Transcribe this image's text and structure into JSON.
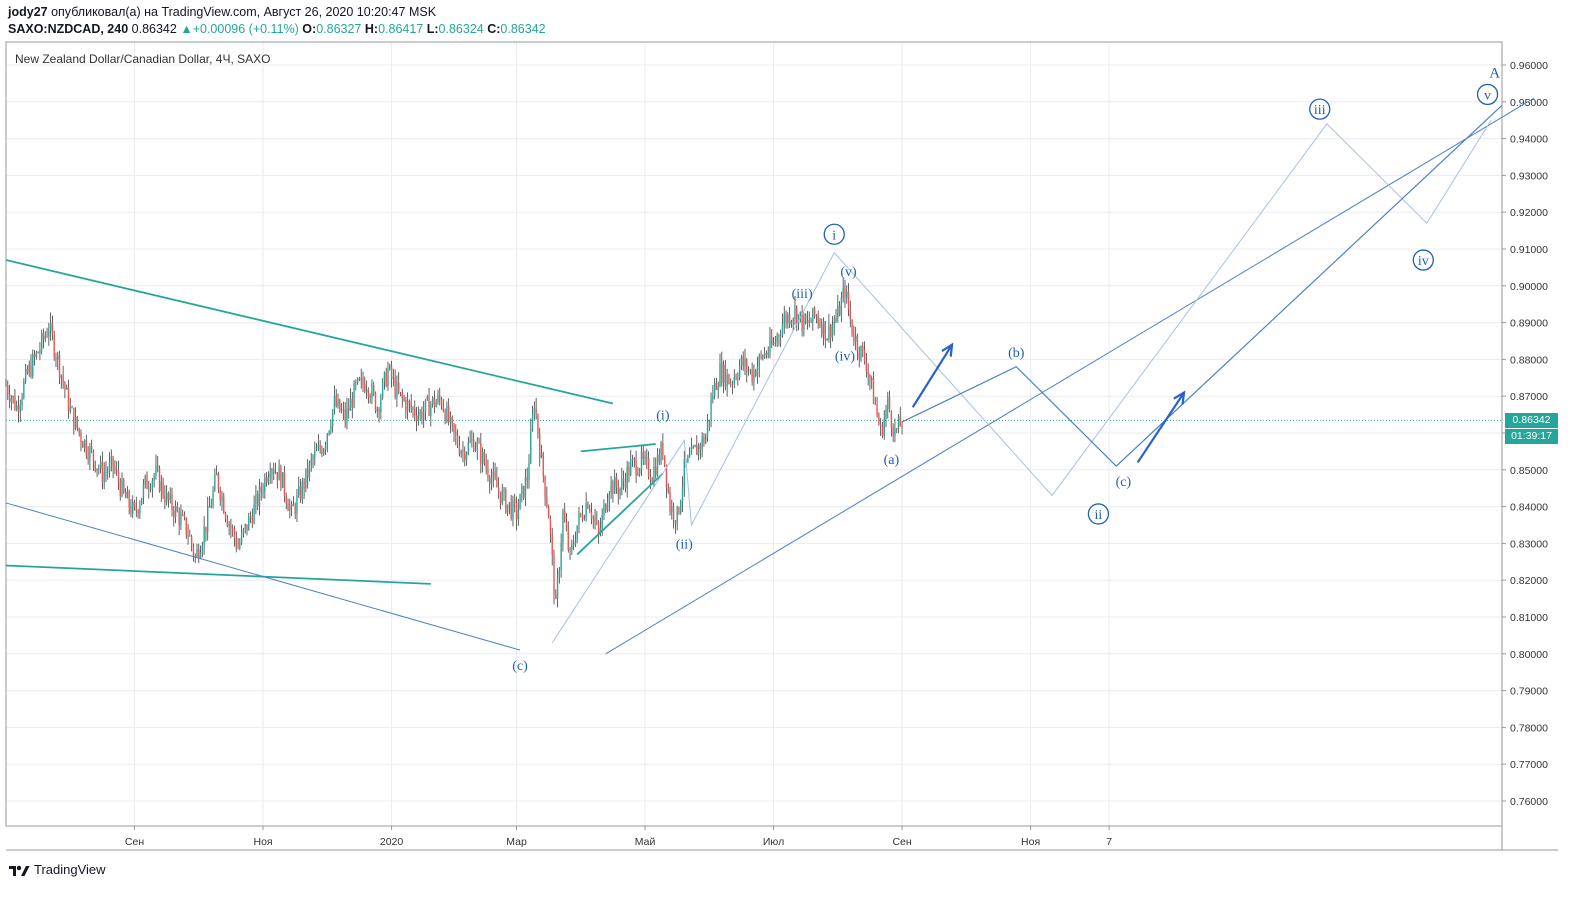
{
  "header": {
    "author": "jody27",
    "published_text": " опубликовал(а) на TradingView.com, Август 26, 2020 10:20:47 MSK",
    "symbol": "SAXO:NZDCAD, 240",
    "last": "0.86342",
    "change": "+0.00096 (+0.11%)",
    "o_label": "O:",
    "o_value": "0.86327",
    "h_label": "H:",
    "h_value": "0.86417",
    "l_label": "L:",
    "l_value": "0.86324",
    "c_label": "C:",
    "c_value": "0.86342"
  },
  "chart_title": "New Zealand Dollar/Canadian Dollar, 4Ч, SAXO",
  "current_price_tag": "0.86342",
  "countdown_tag": "01:39:17",
  "footer_brand": "TradingView",
  "colors": {
    "up": "#26a69a",
    "down": "#ef5350",
    "candle": "#3a3f3d",
    "trendline": "#26a69a",
    "wave": "#4f7fc7",
    "wave_light": "#a9bfe3",
    "label": "#1f5fb5",
    "grid": "#e9ecf1"
  },
  "chart_data": {
    "type": "candlestick",
    "yaxis_ticks": [
      "0.96000",
      "0.95000",
      "0.94000",
      "0.93000",
      "0.92000",
      "0.91000",
      "0.90000",
      "0.89000",
      "0.88000",
      "0.87000",
      "0.86000",
      "0.85000",
      "0.84000",
      "0.83000",
      "0.82000",
      "0.81000",
      "0.80000",
      "0.79000",
      "0.78000",
      "0.77000",
      "0.76000"
    ],
    "ylim": [
      0.752,
      0.964
    ],
    "xaxis_ticks": [
      "Сен",
      "Ноя",
      "2020",
      "Мар",
      "Май",
      "Июл",
      "Сен",
      "Ноя",
      "7"
    ],
    "price_path": [
      [
        0,
        0.873
      ],
      [
        3,
        0.867
      ],
      [
        6,
        0.876
      ],
      [
        9,
        0.882
      ],
      [
        12,
        0.889
      ],
      [
        15,
        0.878
      ],
      [
        18,
        0.866
      ],
      [
        21,
        0.859
      ],
      [
        24,
        0.854
      ],
      [
        27,
        0.849
      ],
      [
        30,
        0.851
      ],
      [
        33,
        0.843
      ],
      [
        36,
        0.838
      ],
      [
        39,
        0.846
      ],
      [
        42,
        0.849
      ],
      [
        45,
        0.842
      ],
      [
        48,
        0.838
      ],
      [
        51,
        0.833
      ],
      [
        53,
        0.826
      ],
      [
        56,
        0.835
      ],
      [
        59,
        0.848
      ],
      [
        62,
        0.837
      ],
      [
        65,
        0.829
      ],
      [
        68,
        0.836
      ],
      [
        71,
        0.843
      ],
      [
        74,
        0.852
      ],
      [
        77,
        0.848
      ],
      [
        80,
        0.838
      ],
      [
        83,
        0.845
      ],
      [
        86,
        0.853
      ],
      [
        89,
        0.857
      ],
      [
        92,
        0.868
      ],
      [
        95,
        0.864
      ],
      [
        98,
        0.872
      ],
      [
        101,
        0.874
      ],
      [
        104,
        0.867
      ],
      [
        107,
        0.877
      ],
      [
        110,
        0.87
      ],
      [
        113,
        0.867
      ],
      [
        116,
        0.865
      ],
      [
        119,
        0.868
      ],
      [
        122,
        0.869
      ],
      [
        125,
        0.86
      ],
      [
        128,
        0.855
      ],
      [
        131,
        0.858
      ],
      [
        134,
        0.852
      ],
      [
        137,
        0.846
      ],
      [
        140,
        0.841
      ],
      [
        143,
        0.838
      ],
      [
        146,
        0.848
      ],
      [
        148,
        0.869
      ],
      [
        150,
        0.852
      ],
      [
        152,
        0.838
      ],
      [
        154,
        0.812
      ],
      [
        156,
        0.838
      ],
      [
        158,
        0.826
      ],
      [
        160,
        0.835
      ],
      [
        163,
        0.842
      ],
      [
        166,
        0.832
      ],
      [
        169,
        0.846
      ],
      [
        172,
        0.845
      ],
      [
        175,
        0.851
      ],
      [
        178,
        0.852
      ],
      [
        181,
        0.849
      ],
      [
        184,
        0.856
      ],
      [
        186,
        0.84
      ],
      [
        188,
        0.837
      ],
      [
        190,
        0.85
      ],
      [
        193,
        0.855
      ],
      [
        196,
        0.859
      ],
      [
        198,
        0.871
      ],
      [
        200,
        0.877
      ],
      [
        203,
        0.874
      ],
      [
        206,
        0.879
      ],
      [
        209,
        0.876
      ],
      [
        212,
        0.881
      ],
      [
        215,
        0.884
      ],
      [
        218,
        0.891
      ],
      [
        221,
        0.893
      ],
      [
        224,
        0.889
      ],
      [
        227,
        0.892
      ],
      [
        230,
        0.887
      ],
      [
        233,
        0.892
      ],
      [
        235,
        0.899
      ],
      [
        237,
        0.888
      ],
      [
        239,
        0.883
      ],
      [
        241,
        0.879
      ],
      [
        243,
        0.87
      ],
      [
        245,
        0.86
      ],
      [
        247,
        0.868
      ],
      [
        249,
        0.86
      ],
      [
        251,
        0.863
      ]
    ],
    "projection": [
      [
        251,
        0.863
      ],
      [
        283,
        0.878
      ],
      [
        311,
        0.851
      ],
      [
        419,
        0.949
      ]
    ],
    "projection_light": [
      [
        153,
        0.803
      ],
      [
        190,
        0.858
      ],
      [
        192,
        0.835
      ],
      [
        232,
        0.909
      ],
      [
        293,
        0.843
      ],
      [
        370,
        0.944
      ],
      [
        398,
        0.917
      ],
      [
        416,
        0.945
      ]
    ],
    "trendlines": [
      {
        "from": [
          0,
          0.907
        ],
        "to": [
          170,
          0.868
        ]
      },
      {
        "from": [
          0,
          0.824
        ],
        "to": [
          119,
          0.819
        ]
      },
      {
        "from": [
          160,
          0.827
        ],
        "to": [
          184,
          0.849
        ]
      },
      {
        "from": [
          161,
          0.855
        ],
        "to": [
          182,
          0.857
        ]
      }
    ],
    "channel_lines": [
      {
        "from": [
          0,
          0.841
        ],
        "to": [
          144,
          0.801
        ]
      },
      {
        "from": [
          168,
          0.8
        ],
        "to": [
          428,
          0.951
        ]
      }
    ],
    "arrows": [
      {
        "from": [
          254,
          0.867
        ],
        "to": [
          265,
          0.884
        ]
      },
      {
        "from": [
          317,
          0.852
        ],
        "to": [
          330,
          0.871
        ]
      }
    ],
    "wave_labels": [
      {
        "text": "(c)",
        "x": 144,
        "y": 0.797,
        "circled": false
      },
      {
        "text": "(i)",
        "x": 184,
        "y": 0.865,
        "circled": false
      },
      {
        "text": "(ii)",
        "x": 190,
        "y": 0.83,
        "circled": false
      },
      {
        "text": "(iii)",
        "x": 223,
        "y": 0.898,
        "circled": false
      },
      {
        "text": "i",
        "x": 232,
        "y": 0.914,
        "circled": true
      },
      {
        "text": "(v)",
        "x": 236,
        "y": 0.904,
        "circled": false
      },
      {
        "text": "(iv)",
        "x": 235,
        "y": 0.881,
        "circled": false
      },
      {
        "text": "(a)",
        "x": 248,
        "y": 0.853,
        "circled": false
      },
      {
        "text": "(b)",
        "x": 283,
        "y": 0.882,
        "circled": false
      },
      {
        "text": "(c)",
        "x": 313,
        "y": 0.847,
        "circled": false
      },
      {
        "text": "ii",
        "x": 306,
        "y": 0.838,
        "circled": true
      },
      {
        "text": "iii",
        "x": 368,
        "y": 0.948,
        "circled": true
      },
      {
        "text": "iv",
        "x": 397,
        "y": 0.907,
        "circled": true
      },
      {
        "text": "v",
        "x": 415,
        "y": 0.952,
        "circled": true
      },
      {
        "text": "A",
        "x": 417,
        "y": 0.958,
        "circled": false
      }
    ]
  }
}
